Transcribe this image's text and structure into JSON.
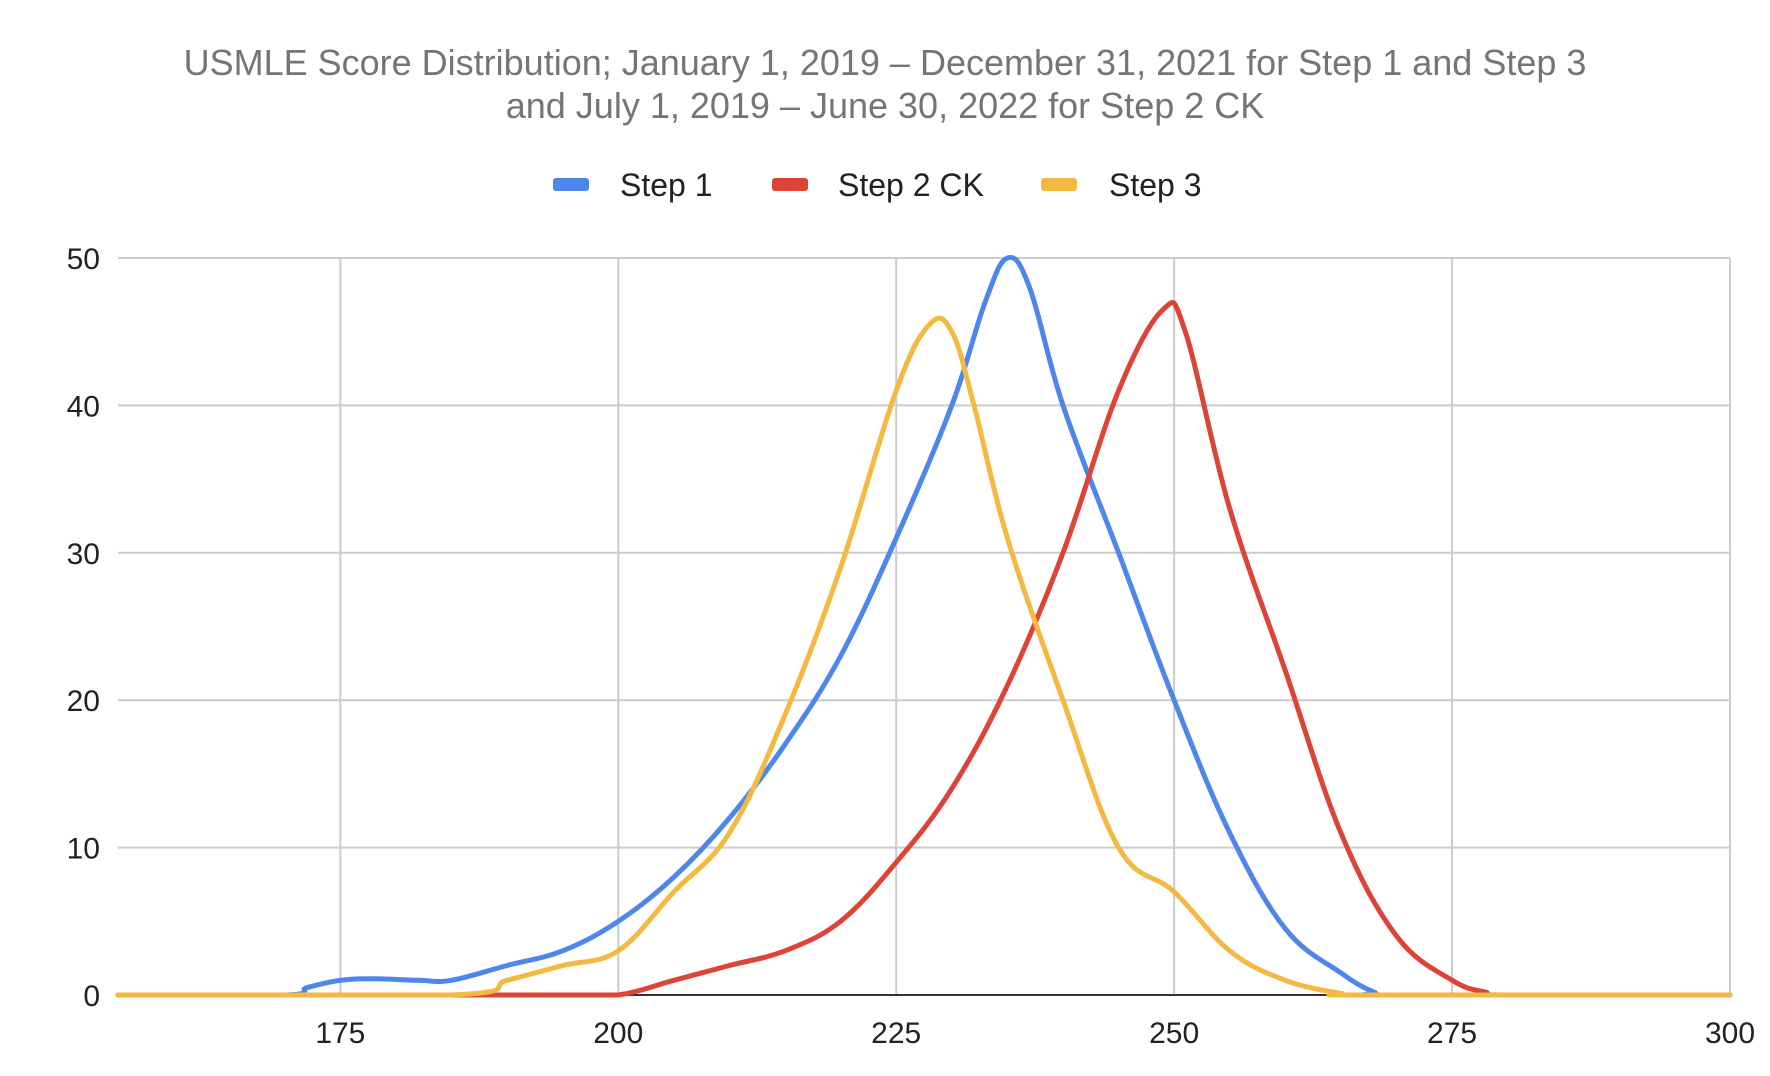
{
  "chart_data": {
    "type": "line",
    "title_lines": [
      "USMLE Score Distribution; January 1, 2019 – December 31, 2021 for Step 1 and Step 3",
      "and July 1, 2019 – June 30, 2022 for Step 2 CK"
    ],
    "xlabel": "",
    "ylabel": "",
    "xlim": [
      155,
      300
    ],
    "ylim": [
      0,
      50
    ],
    "x_ticks": [
      175,
      200,
      225,
      250,
      275,
      300
    ],
    "y_ticks": [
      0,
      10,
      20,
      30,
      40,
      50
    ],
    "grid": true,
    "legend_position": "top-center",
    "series": [
      {
        "name": "Step 1",
        "color": "#4f86ec",
        "points": [
          [
            155,
            0
          ],
          [
            170,
            0
          ],
          [
            172,
            0.5
          ],
          [
            175,
            1
          ],
          [
            178,
            1.1
          ],
          [
            182,
            1
          ],
          [
            185,
            1
          ],
          [
            190,
            2
          ],
          [
            195,
            3
          ],
          [
            200,
            5
          ],
          [
            205,
            8
          ],
          [
            210,
            12
          ],
          [
            215,
            17
          ],
          [
            220,
            23
          ],
          [
            225,
            31
          ],
          [
            230,
            40
          ],
          [
            233,
            47
          ],
          [
            235,
            50
          ],
          [
            237,
            48
          ],
          [
            240,
            40
          ],
          [
            245,
            30
          ],
          [
            250,
            20
          ],
          [
            255,
            11
          ],
          [
            260,
            4.5
          ],
          [
            265,
            1.5
          ],
          [
            268,
            0.2
          ],
          [
            270,
            0
          ],
          [
            300,
            0
          ]
        ]
      },
      {
        "name": "Step 2 CK",
        "color": "#db4437",
        "points": [
          [
            155,
            0
          ],
          [
            195,
            0
          ],
          [
            200,
            0
          ],
          [
            205,
            1
          ],
          [
            210,
            2
          ],
          [
            215,
            3
          ],
          [
            220,
            5
          ],
          [
            225,
            9
          ],
          [
            230,
            14
          ],
          [
            235,
            21
          ],
          [
            240,
            30
          ],
          [
            245,
            41
          ],
          [
            249,
            46.5
          ],
          [
            251,
            45
          ],
          [
            255,
            33
          ],
          [
            260,
            22
          ],
          [
            265,
            11
          ],
          [
            270,
            4
          ],
          [
            275,
            1
          ],
          [
            278,
            0.2
          ],
          [
            280,
            0
          ],
          [
            300,
            0
          ]
        ]
      },
      {
        "name": "Step 3",
        "color": "#f4b942",
        "points": [
          [
            155,
            0
          ],
          [
            185,
            0
          ],
          [
            190,
            1
          ],
          [
            195,
            2
          ],
          [
            200,
            3
          ],
          [
            205,
            7
          ],
          [
            210,
            11
          ],
          [
            215,
            19
          ],
          [
            220,
            29
          ],
          [
            225,
            41
          ],
          [
            228,
            45.5
          ],
          [
            230,
            45
          ],
          [
            232,
            40
          ],
          [
            235,
            31
          ],
          [
            240,
            20
          ],
          [
            245,
            10
          ],
          [
            250,
            7
          ],
          [
            255,
            3
          ],
          [
            260,
            1
          ],
          [
            265,
            0.1
          ],
          [
            267,
            0
          ],
          [
            300,
            0
          ]
        ]
      }
    ]
  }
}
